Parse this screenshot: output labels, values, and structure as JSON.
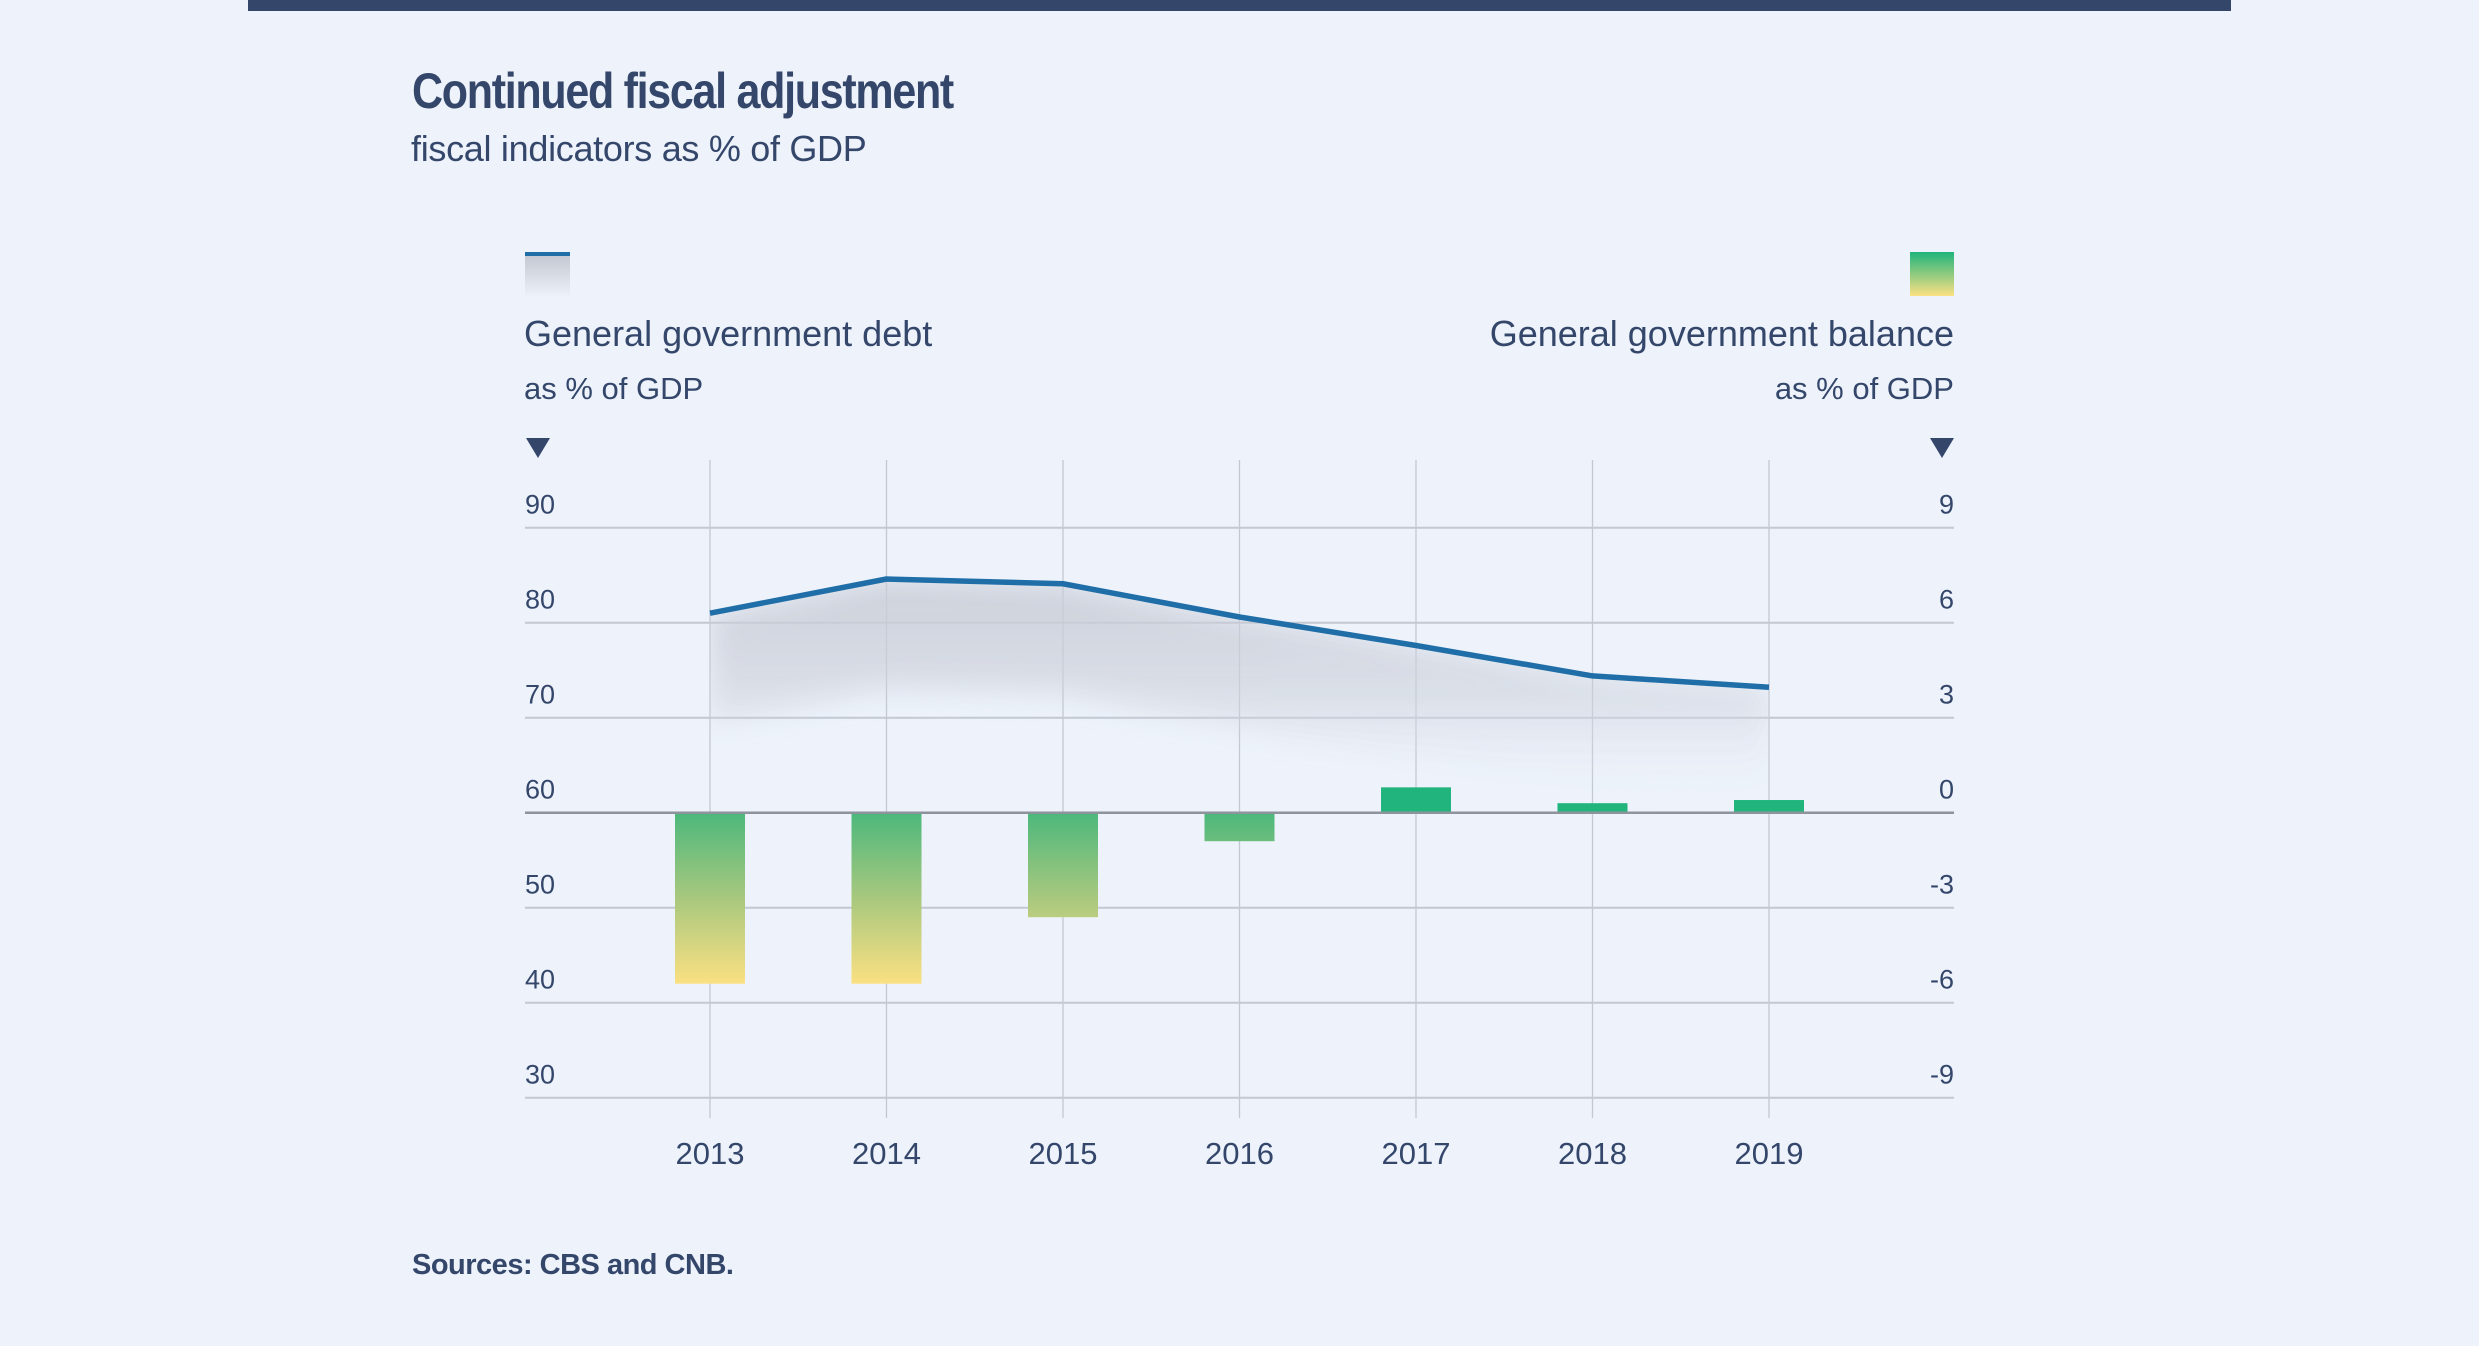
{
  "header": {
    "title": "Continued fiscal adjustment",
    "subtitle": "fiscal indicators as % of GDP"
  },
  "footer": {
    "sources": "Sources: CBS and CNB."
  },
  "colors": {
    "text": "#34476b",
    "line": "#1f6ea8",
    "bar_top": "#1fb47c",
    "bar_bottom": "#fbe082",
    "grid": "#c3c8d2",
    "baseline": "#8e939c",
    "background": "#edf2fb"
  },
  "chart_data": {
    "type": "bar+line",
    "title": "Continued fiscal adjustment",
    "subtitle": "fiscal indicators as % of GDP",
    "categories": [
      "2013",
      "2014",
      "2015",
      "2016",
      "2017",
      "2018",
      "2019"
    ],
    "series": [
      {
        "name": "General government debt",
        "unit": "as % of GDP",
        "type": "line",
        "axis": "left",
        "values": [
          81.0,
          84.6,
          84.1,
          80.6,
          77.6,
          74.4,
          73.2
        ]
      },
      {
        "name": "General government balance",
        "unit": "as % of GDP",
        "type": "bar",
        "axis": "right",
        "values": [
          -5.4,
          -5.4,
          -3.3,
          -0.9,
          0.8,
          0.3,
          0.4
        ]
      }
    ],
    "left_axis": {
      "ticks": [
        "90",
        "80",
        "70",
        "60",
        "50",
        "40",
        "30"
      ],
      "ylim": [
        30,
        90
      ]
    },
    "right_axis": {
      "ticks": [
        "9",
        "6",
        "3",
        "0",
        "-3",
        "-6",
        "-9"
      ],
      "ylim": [
        -9,
        9
      ]
    },
    "grid": true,
    "legend": "top",
    "source": "Sources: CBS and CNB."
  }
}
